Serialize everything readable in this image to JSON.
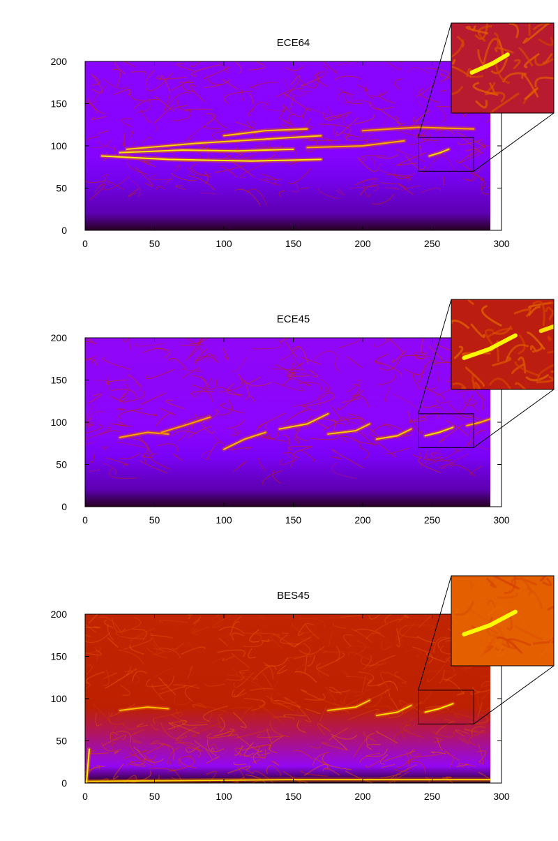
{
  "chart_data": [
    {
      "type": "heatmap",
      "title": "ECE64",
      "xlabel": "",
      "ylabel": "",
      "xlim": [
        0,
        300
      ],
      "ylim": [
        0,
        200
      ],
      "xticks": [
        0,
        50,
        100,
        150,
        200,
        250,
        300
      ],
      "yticks": [
        0,
        50,
        100,
        150,
        200
      ],
      "data_x_extent": [
        0,
        292
      ],
      "colormap": "gnuplot palette (black-purple-red-orange-yellow)",
      "background_level": 0.25,
      "floor_level": 0.12,
      "inset": {
        "x": [
          240,
          280
        ],
        "y": [
          70,
          110
        ]
      },
      "ridges": [
        {
          "points": [
            [
              12,
              88
            ],
            [
              60,
              84
            ],
            [
              120,
              82
            ],
            [
              170,
              84
            ]
          ],
          "intensity": 1.0
        },
        {
          "points": [
            [
              25,
              92
            ],
            [
              70,
              95
            ],
            [
              110,
              94
            ],
            [
              150,
              96
            ]
          ],
          "intensity": 0.95
        },
        {
          "points": [
            [
              30,
              96
            ],
            [
              80,
              103
            ],
            [
              130,
              108
            ],
            [
              170,
              112
            ]
          ],
          "intensity": 0.85
        },
        {
          "points": [
            [
              100,
              112
            ],
            [
              130,
              118
            ],
            [
              160,
              120
            ]
          ],
          "intensity": 0.8
        },
        {
          "points": [
            [
              160,
              98
            ],
            [
              200,
              100
            ],
            [
              230,
              106
            ]
          ],
          "intensity": 0.65
        },
        {
          "points": [
            [
              200,
              118
            ],
            [
              240,
              122
            ],
            [
              280,
              120
            ]
          ],
          "intensity": 0.6
        },
        {
          "points": [
            [
              248,
              88
            ],
            [
              256,
              92
            ],
            [
              262,
              96
            ]
          ],
          "intensity": 0.95
        }
      ]
    },
    {
      "type": "heatmap",
      "title": "ECE45",
      "xlabel": "",
      "ylabel": "",
      "xlim": [
        0,
        300
      ],
      "ylim": [
        0,
        200
      ],
      "xticks": [
        0,
        50,
        100,
        150,
        200,
        250,
        300
      ],
      "yticks": [
        0,
        50,
        100,
        150,
        200
      ],
      "data_x_extent": [
        0,
        292
      ],
      "colormap": "gnuplot palette (black-purple-red-orange-yellow)",
      "background_level": 0.27,
      "floor_level": 0.12,
      "inset": {
        "x": [
          240,
          280
        ],
        "y": [
          70,
          110
        ]
      },
      "ridges": [
        {
          "points": [
            [
              25,
              82
            ],
            [
              45,
              88
            ],
            [
              60,
              86
            ]
          ],
          "intensity": 0.6
        },
        {
          "points": [
            [
              55,
              88
            ],
            [
              75,
              98
            ],
            [
              90,
              106
            ]
          ],
          "intensity": 0.6
        },
        {
          "points": [
            [
              100,
              68
            ],
            [
              115,
              80
            ],
            [
              130,
              88
            ]
          ],
          "intensity": 0.75
        },
        {
          "points": [
            [
              140,
              92
            ],
            [
              160,
              98
            ],
            [
              175,
              110
            ]
          ],
          "intensity": 0.85
        },
        {
          "points": [
            [
              175,
              86
            ],
            [
              195,
              90
            ],
            [
              205,
              98
            ]
          ],
          "intensity": 0.8
        },
        {
          "points": [
            [
              210,
              80
            ],
            [
              225,
              84
            ],
            [
              235,
              92
            ]
          ],
          "intensity": 0.85
        },
        {
          "points": [
            [
              245,
              84
            ],
            [
              255,
              88
            ],
            [
              265,
              94
            ]
          ],
          "intensity": 0.95
        },
        {
          "points": [
            [
              275,
              96
            ],
            [
              285,
              100
            ],
            [
              292,
              104
            ]
          ],
          "intensity": 0.7
        }
      ]
    },
    {
      "type": "heatmap",
      "title": "BES45",
      "xlabel": "",
      "ylabel": "",
      "xlim": [
        0,
        300
      ],
      "ylim": [
        0,
        200
      ],
      "xticks": [
        0,
        50,
        100,
        150,
        200,
        250,
        300
      ],
      "yticks": [
        0,
        50,
        100,
        150,
        200
      ],
      "data_x_extent": [
        0,
        292
      ],
      "colormap": "gnuplot palette (black-purple-red-orange-yellow)",
      "background_level": 0.5,
      "floor_level": 0.3,
      "inset": {
        "x": [
          240,
          280
        ],
        "y": [
          70,
          110
        ]
      },
      "ridges": [
        {
          "points": [
            [
              25,
              86
            ],
            [
              45,
              90
            ],
            [
              60,
              88
            ]
          ],
          "intensity": 0.75
        },
        {
          "points": [
            [
              175,
              86
            ],
            [
              195,
              90
            ],
            [
              205,
              98
            ]
          ],
          "intensity": 0.85
        },
        {
          "points": [
            [
              210,
              80
            ],
            [
              225,
              84
            ],
            [
              235,
              92
            ]
          ],
          "intensity": 0.9
        },
        {
          "points": [
            [
              245,
              84
            ],
            [
              255,
              88
            ],
            [
              265,
              94
            ]
          ],
          "intensity": 1.0
        },
        {
          "points": [
            [
              0,
              2
            ],
            [
              146,
              4
            ],
            [
              292,
              4
            ]
          ],
          "intensity": 0.85
        },
        {
          "points": [
            [
              1,
              0
            ],
            [
              2,
              20
            ],
            [
              3,
              40
            ]
          ],
          "intensity": 1.0
        }
      ]
    }
  ]
}
